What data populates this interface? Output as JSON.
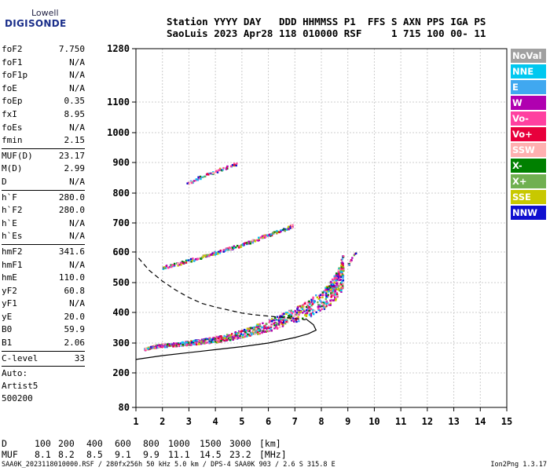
{
  "logo": {
    "line1": "Lowell",
    "line2": "DIGISONDE"
  },
  "header": {
    "columns": [
      "Station",
      "YYYY",
      "DAY",
      "DDD",
      "HHMMSS",
      "P1",
      "FFS",
      "S",
      "AXN",
      "PPS",
      "IGA",
      "PS"
    ],
    "line1": "Station YYYY DAY   DDD HHMMSS P1  FFS S AXN PPS IGA PS",
    "line2": "SaoLuis 2023 Apr28 118 010000 RSF     1 715 100 00- 11"
  },
  "parameters": {
    "group1": [
      {
        "key": "foF2",
        "value": "7.750"
      },
      {
        "key": "foF1",
        "value": "N/A"
      },
      {
        "key": "foF1p",
        "value": "N/A"
      },
      {
        "key": "foE",
        "value": "N/A"
      },
      {
        "key": "foEp",
        "value": "0.35"
      },
      {
        "key": "fxI",
        "value": "8.95"
      },
      {
        "key": "foEs",
        "value": "N/A"
      },
      {
        "key": "fmin",
        "value": "2.15"
      }
    ],
    "group2": [
      {
        "key": "MUF(D)",
        "value": "23.17"
      },
      {
        "key": "M(D)",
        "value": "2.99"
      },
      {
        "key": "D",
        "value": "N/A"
      }
    ],
    "group3": [
      {
        "key": "h`F",
        "value": "280.0"
      },
      {
        "key": "h`F2",
        "value": "280.0"
      },
      {
        "key": "h`E",
        "value": "N/A"
      },
      {
        "key": "h`Es",
        "value": "N/A"
      }
    ],
    "group4": [
      {
        "key": "hmF2",
        "value": "341.6"
      },
      {
        "key": "hmF1",
        "value": "N/A"
      },
      {
        "key": "hmE",
        "value": "110.0"
      },
      {
        "key": "yF2",
        "value": "60.8"
      },
      {
        "key": "yF1",
        "value": "N/A"
      },
      {
        "key": "yE",
        "value": "20.0"
      },
      {
        "key": "B0",
        "value": "59.9"
      },
      {
        "key": "B1",
        "value": "2.06"
      }
    ],
    "group5": [
      {
        "key": "C-level",
        "value": "33"
      }
    ],
    "auto": [
      "Auto:",
      "Artist5",
      "500200"
    ]
  },
  "legend": [
    {
      "label": "NoVal",
      "color": "#a0a0a0"
    },
    {
      "label": "NNE",
      "color": "#00c8f0"
    },
    {
      "label": "E",
      "color": "#40a8f0"
    },
    {
      "label": "W",
      "color": "#b000b0"
    },
    {
      "label": "Vo-",
      "color": "#ff40a0"
    },
    {
      "label": "Vo+",
      "color": "#e8003c"
    },
    {
      "label": "SSW",
      "color": "#ffb0b0"
    },
    {
      "label": "X-",
      "color": "#008000"
    },
    {
      "label": "X+",
      "color": "#70b050"
    },
    {
      "label": "SSE",
      "color": "#c8c800"
    },
    {
      "label": "NNW",
      "color": "#1010d0"
    }
  ],
  "distance_table": {
    "d_label": "D",
    "d_values": [
      "100",
      "200",
      "400",
      "600",
      "800",
      "1000",
      "1500",
      "3000"
    ],
    "d_unit": "[km]",
    "muf_label": "MUF",
    "muf_values": [
      "8.1",
      "8.2",
      "8.5",
      "9.1",
      "9.9",
      "11.1",
      "14.5",
      "23.2"
    ],
    "muf_unit": "[MHz]"
  },
  "footer": {
    "left": "SAA0K_2023118010000.RSF / 280fx256h 50 kHz 5.0 km / DPS-4 SAA0K 903 / 2.6 S 315.8 E",
    "right": "Ion2Png 1.3.17"
  },
  "chart_data": {
    "type": "scatter",
    "x_ticks": [
      "1",
      "2",
      "3",
      "4",
      "5",
      "6",
      "7",
      "8",
      "9",
      "10",
      "11",
      "12",
      "13",
      "14",
      "15"
    ],
    "y_ticks": [
      "80",
      "200",
      "300",
      "400",
      "500",
      "600",
      "700",
      "800",
      "900",
      "1000",
      "1100",
      "1280"
    ],
    "xlim": [
      1,
      15
    ],
    "ylim": [
      80,
      1280
    ],
    "y_scale": "nonlinear (virtual height)",
    "grid": true,
    "traces": [
      {
        "name": "O-trace F2",
        "points": [
          [
            1.3,
            280
          ],
          [
            1.6,
            288
          ],
          [
            2.0,
            292
          ],
          [
            2.5,
            295
          ],
          [
            3.0,
            300
          ],
          [
            3.5,
            305
          ],
          [
            4.0,
            310
          ],
          [
            4.5,
            318
          ],
          [
            5.0,
            328
          ],
          [
            5.5,
            340
          ],
          [
            6.0,
            352
          ],
          [
            6.5,
            368
          ],
          [
            7.0,
            385
          ],
          [
            7.5,
            405
          ],
          [
            8.0,
            428
          ],
          [
            8.3,
            450
          ],
          [
            8.5,
            470
          ],
          [
            8.7,
            500
          ],
          [
            8.8,
            520
          ]
        ]
      },
      {
        "name": "second hop",
        "points": [
          [
            2.0,
            550
          ],
          [
            2.5,
            560
          ],
          [
            3.0,
            572
          ],
          [
            3.5,
            585
          ],
          [
            4.0,
            598
          ],
          [
            4.5,
            612
          ],
          [
            5.0,
            625
          ],
          [
            5.5,
            642
          ],
          [
            6.0,
            660
          ],
          [
            6.5,
            675
          ],
          [
            6.9,
            690
          ]
        ]
      },
      {
        "name": "third hop",
        "points": [
          [
            2.9,
            830
          ],
          [
            3.3,
            848
          ],
          [
            3.7,
            862
          ],
          [
            4.1,
            875
          ],
          [
            4.5,
            888
          ],
          [
            4.8,
            895
          ]
        ]
      },
      {
        "name": "X-trace upper",
        "points": [
          [
            8.3,
            480
          ],
          [
            8.6,
            520
          ],
          [
            9.0,
            560
          ],
          [
            9.3,
            600
          ]
        ]
      }
    ],
    "profile_solid": [
      [
        1.0,
        245
      ],
      [
        2.0,
        258
      ],
      [
        3.0,
        268
      ],
      [
        4.0,
        278
      ],
      [
        5.0,
        288
      ],
      [
        6.0,
        300
      ],
      [
        7.0,
        318
      ],
      [
        7.5,
        330
      ],
      [
        7.8,
        342
      ],
      [
        7.7,
        360
      ],
      [
        7.4,
        380
      ]
    ],
    "profile_dashed": [
      [
        1.1,
        580
      ],
      [
        1.5,
        540
      ],
      [
        2.0,
        505
      ],
      [
        2.5,
        475
      ],
      [
        3.0,
        450
      ],
      [
        3.5,
        430
      ],
      [
        4.0,
        418
      ],
      [
        4.5,
        408
      ],
      [
        5.0,
        398
      ],
      [
        5.5,
        392
      ],
      [
        6.0,
        388
      ],
      [
        6.5,
        384
      ],
      [
        7.0,
        380
      ],
      [
        7.4,
        376
      ]
    ]
  }
}
